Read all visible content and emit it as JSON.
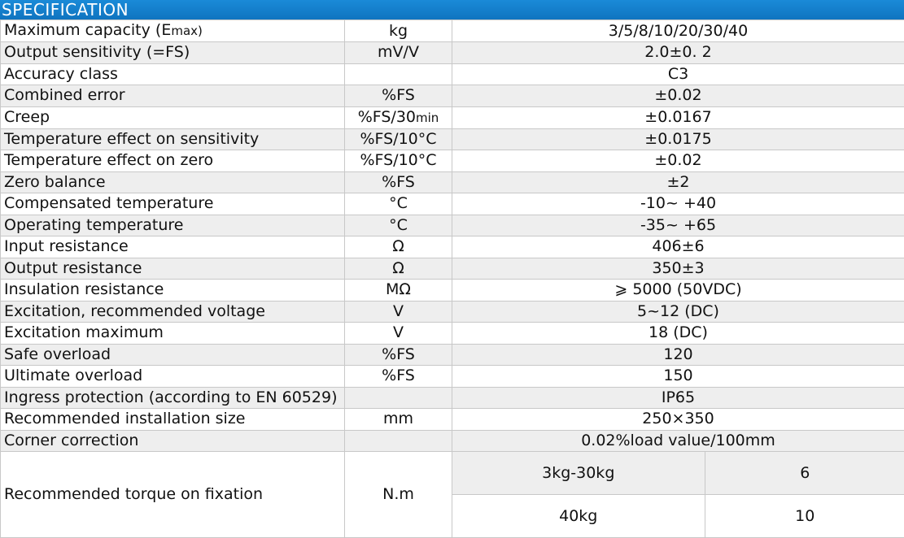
{
  "header": {
    "title": "SPECIFICATION"
  },
  "rows": [
    {
      "param": "Maximum capacity (E",
      "param_small": "max)",
      "unit": "kg",
      "value": "3/5/8/10/20/30/40"
    },
    {
      "param": "Output sensitivity (=FS)",
      "unit": "mV/V",
      "value": "2.0±0. 2"
    },
    {
      "param": "Accuracy class",
      "unit": "",
      "value": "C3"
    },
    {
      "param": "Combined error",
      "unit": "%FS",
      "value": "±0.02"
    },
    {
      "param": "Creep",
      "unit": "%FS/30",
      "unit_small": "min",
      "value": "±0.0167"
    },
    {
      "param": "Temperature effect on sensitivity",
      "unit": "%FS/10°C",
      "value": "±0.0175"
    },
    {
      "param": "Temperature effect on zero",
      "unit": "%FS/10°C",
      "value": "±0.02"
    },
    {
      "param": "Zero balance",
      "unit": "%FS",
      "value": "±2"
    },
    {
      "param": "Compensated temperature",
      "unit": "°C",
      "value": "-10~ +40"
    },
    {
      "param": "Operating temperature",
      "unit": "°C",
      "value": "-35~ +65"
    },
    {
      "param": "Input resistance",
      "unit": "Ω",
      "value": "406±6"
    },
    {
      "param": "Output resistance",
      "unit": "Ω",
      "value": "350±3"
    },
    {
      "param": "Insulation resistance",
      "unit": "MΩ",
      "value": "⩾ 5000 (50VDC)"
    },
    {
      "param": "Excitation, recommended voltage",
      "unit": "V",
      "value": "5~12 (DC)"
    },
    {
      "param": "Excitation maximum",
      "unit": "V",
      "value": "18 (DC)"
    },
    {
      "param": "Safe overload",
      "unit": "%FS",
      "value": "120"
    },
    {
      "param": "Ultimate overload",
      "unit": "%FS",
      "value": "150"
    },
    {
      "param": "Ingress protection (according to EN 60529)",
      "unit": "",
      "value": "IP65"
    },
    {
      "param": "Recommended installation size",
      "unit": "mm",
      "value": "250×350"
    },
    {
      "param": "Corner correction",
      "unit": "",
      "value": "0.02%load value/100mm"
    }
  ],
  "torque": {
    "param": "Recommended torque on fixation",
    "unit": "N.m",
    "sub": [
      {
        "range": "3kg-30kg",
        "value": "6"
      },
      {
        "range": "40kg",
        "value": "10"
      }
    ]
  }
}
